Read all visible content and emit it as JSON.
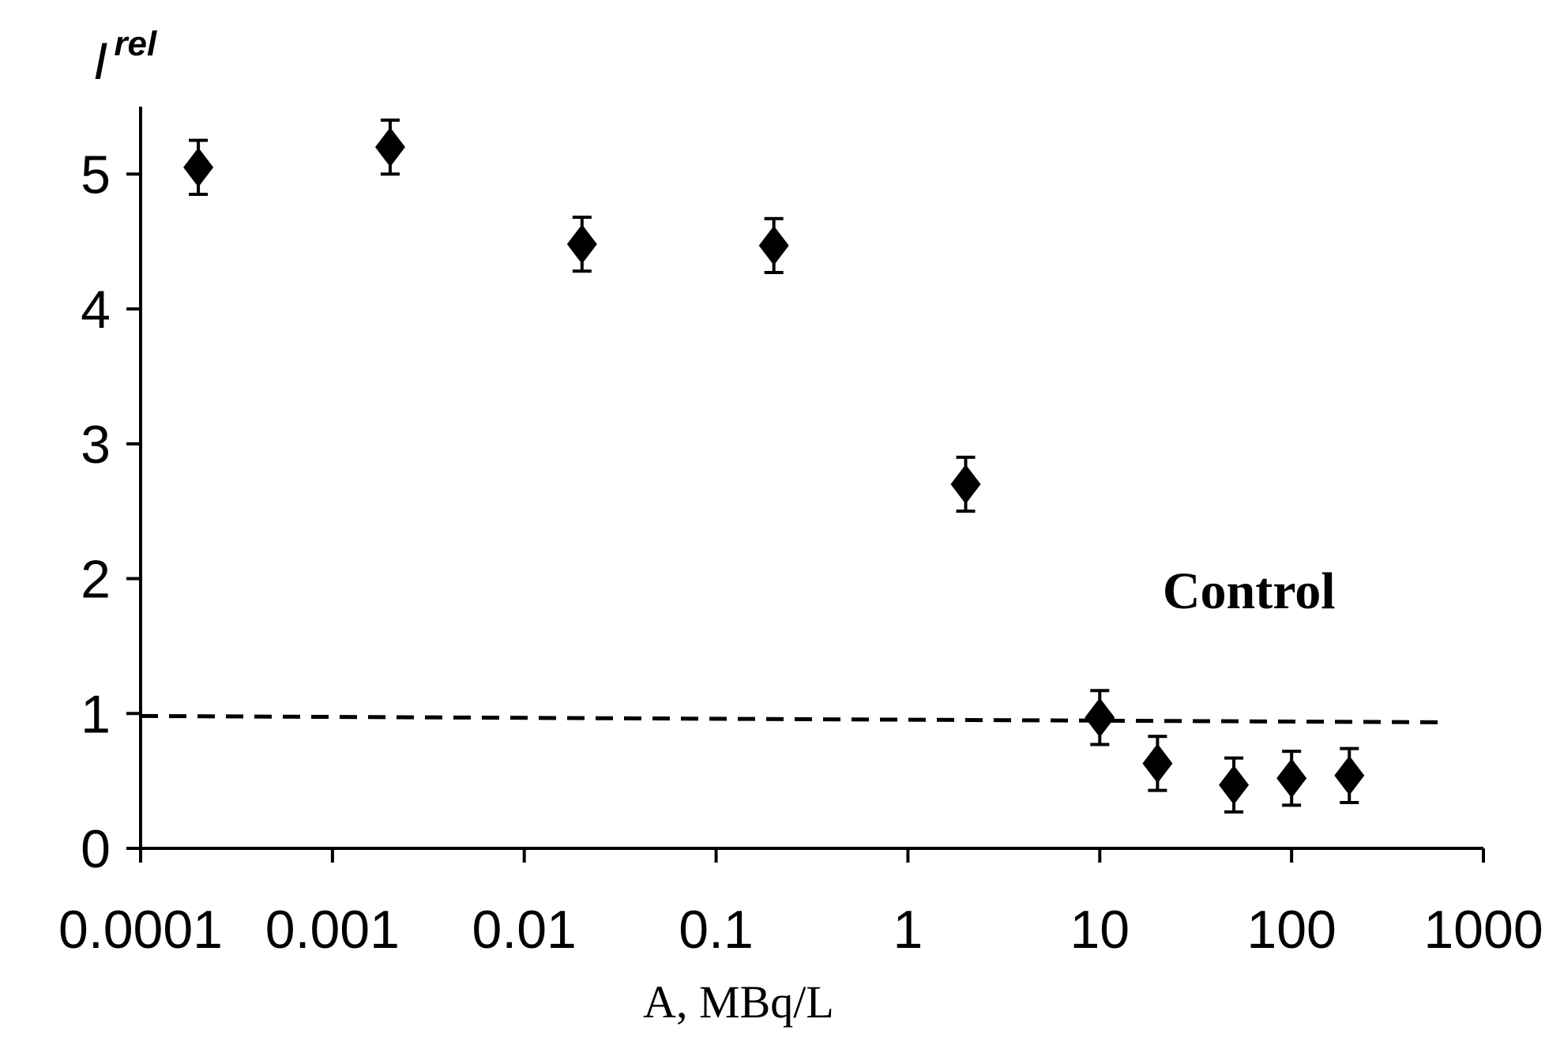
{
  "chart_data": {
    "type": "scatter",
    "title": "",
    "xlabel": "A, MBq/L",
    "ylabel": {
      "main": "I",
      "sup": "rel"
    },
    "xscale": "log",
    "xlim": [
      0.0001,
      1000
    ],
    "ylim": [
      0,
      5.5
    ],
    "x_ticks": [
      0.0001,
      0.001,
      0.01,
      0.1,
      1,
      10,
      100,
      1000
    ],
    "x_tick_labels": [
      "0.0001",
      "0.001",
      "0.01",
      "0.1",
      "1",
      "10",
      "100",
      "1000"
    ],
    "y_ticks": [
      0,
      1,
      2,
      3,
      4,
      5
    ],
    "y_tick_labels": [
      "0",
      "1",
      "2",
      "3",
      "4",
      "5"
    ],
    "grid": false,
    "series": [
      {
        "name": "Irel",
        "marker": "diamond",
        "points": [
          {
            "x": 0.0002,
            "y": 5.05,
            "err": 0.2
          },
          {
            "x": 0.002,
            "y": 5.2,
            "err": 0.2
          },
          {
            "x": 0.02,
            "y": 4.48,
            "err": 0.2
          },
          {
            "x": 0.2,
            "y": 4.47,
            "err": 0.2
          },
          {
            "x": 2,
            "y": 2.7,
            "err": 0.2
          },
          {
            "x": 10,
            "y": 0.97,
            "err": 0.2
          },
          {
            "x": 20,
            "y": 0.63,
            "err": 0.2
          },
          {
            "x": 50,
            "y": 0.47,
            "err": 0.2
          },
          {
            "x": 100,
            "y": 0.52,
            "err": 0.2
          },
          {
            "x": 200,
            "y": 0.54,
            "err": 0.2
          }
        ]
      }
    ],
    "reference_line": {
      "label": "Control",
      "y": 0.97,
      "x_from": 0.0001,
      "x_to": 600,
      "style": "dashed"
    },
    "colors": {
      "marker": "#000000",
      "axis": "#000000",
      "background": "#ffffff"
    }
  }
}
